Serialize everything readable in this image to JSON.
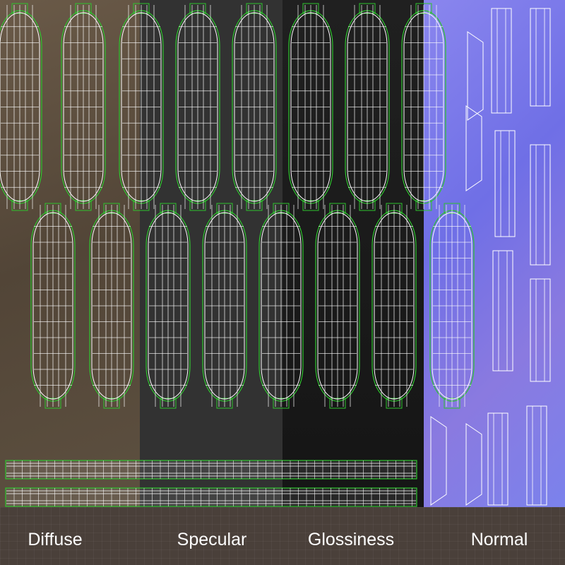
{
  "labels": {
    "diffuse": "Diffuse",
    "specular": "Specular",
    "glossiness": "Glossiness",
    "normal": "Normal"
  },
  "colors": {
    "uv_outline": "#2ec42e",
    "uv_wire": "#ffffff",
    "diffuse_bg": "#5a4c3e",
    "specular_bg": "#323232",
    "glossiness_bg": "#1a1a1a",
    "normal_bg": "#7a7ae8",
    "label_band": "#4a403a"
  }
}
